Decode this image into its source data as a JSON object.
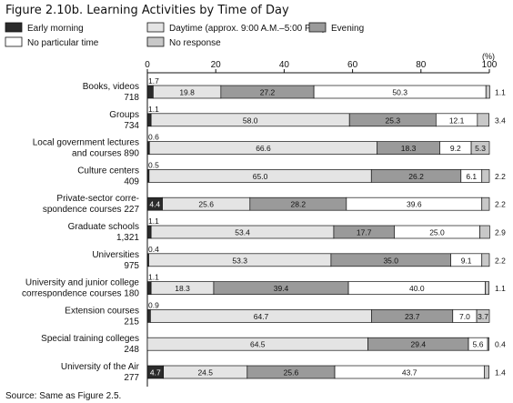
{
  "chart_data": {
    "type": "bar",
    "stacked": true,
    "orientation": "horizontal",
    "title": "Figure 2.10b. Learning Activities by Time of Day",
    "unit_label": "(%)",
    "xlim": [
      0,
      100
    ],
    "xticks": [
      0,
      20,
      40,
      60,
      80,
      100
    ],
    "grid": false,
    "legend_position": "top",
    "source": "Source: Same as Figure 2.5.",
    "series": [
      {
        "name": "Early morning",
        "color": "#2b2b2b"
      },
      {
        "name": "Daytime (approx. 9:00 A.M.–5:00 P.M.)",
        "color": "#e4e4e4"
      },
      {
        "name": "Evening",
        "color": "#9a9a9a"
      },
      {
        "name": "No particular time",
        "color": "#ffffff"
      },
      {
        "name": "No response",
        "color": "#c8c8c8"
      }
    ],
    "categories": [
      {
        "label": [
          "Books, videos",
          "718"
        ],
        "values": [
          1.7,
          19.8,
          27.2,
          50.3,
          1.1
        ],
        "labels": [
          "1.7",
          "19.8",
          "27.2",
          "50.3",
          "1.1"
        ],
        "placement": [
          "above",
          "in",
          "in",
          "in",
          "right"
        ]
      },
      {
        "label": [
          "Groups",
          "734"
        ],
        "values": [
          1.1,
          58.0,
          25.3,
          12.1,
          3.4
        ],
        "labels": [
          "1.1",
          "58.0",
          "25.3",
          "12.1",
          "3.4"
        ],
        "placement": [
          "above",
          "in",
          "in",
          "in",
          "right"
        ]
      },
      {
        "label": [
          "Local government lectures",
          "and courses  890"
        ],
        "values": [
          0.6,
          66.6,
          18.3,
          9.2,
          5.3
        ],
        "labels": [
          "0.6",
          "66.6",
          "18.3",
          "9.2",
          "5.3"
        ],
        "placement": [
          "above",
          "in",
          "in",
          "in",
          "in"
        ]
      },
      {
        "label": [
          "Culture centers",
          "409"
        ],
        "values": [
          0.5,
          65.0,
          26.2,
          6.1,
          2.2
        ],
        "labels": [
          "0.5",
          "65.0",
          "26.2",
          "6.1",
          "2.2"
        ],
        "placement": [
          "above",
          "in",
          "in",
          "in",
          "right"
        ]
      },
      {
        "label": [
          "Private-sector corre-",
          "spondence courses  227"
        ],
        "values": [
          4.4,
          25.6,
          28.2,
          39.6,
          2.2
        ],
        "labels": [
          "4.4",
          "25.6",
          "28.2",
          "39.6",
          "2.2"
        ],
        "placement": [
          "in",
          "in",
          "in",
          "in",
          "right"
        ]
      },
      {
        "label": [
          "Graduate schools",
          "1,321"
        ],
        "values": [
          1.1,
          53.4,
          17.7,
          25.0,
          2.9
        ],
        "labels": [
          "1.1",
          "53.4",
          "17.7",
          "25.0",
          "2.9"
        ],
        "placement": [
          "above",
          "in",
          "in",
          "in",
          "right"
        ]
      },
      {
        "label": [
          "Universities",
          "975"
        ],
        "values": [
          0.4,
          53.3,
          35.0,
          9.1,
          2.2
        ],
        "labels": [
          "0.4",
          "53.3",
          "35.0",
          "9.1",
          "2.2"
        ],
        "placement": [
          "above",
          "in",
          "in",
          "in",
          "right"
        ]
      },
      {
        "label": [
          "University and junior college",
          "correspondence courses  180"
        ],
        "values": [
          1.1,
          18.3,
          39.4,
          40.0,
          1.1
        ],
        "labels": [
          "1.1",
          "18.3",
          "39.4",
          "40.0",
          "1.1"
        ],
        "placement": [
          "above",
          "in",
          "in",
          "in",
          "right"
        ]
      },
      {
        "label": [
          "Extension courses",
          "215"
        ],
        "values": [
          0.9,
          64.7,
          23.7,
          7.0,
          3.7
        ],
        "labels": [
          "0.9",
          "64.7",
          "23.7",
          "7.0",
          "3.7"
        ],
        "placement": [
          "above",
          "in",
          "in",
          "in",
          "in"
        ]
      },
      {
        "label": [
          "Special training colleges",
          "248"
        ],
        "values": [
          0.0,
          64.5,
          29.4,
          5.6,
          0.4
        ],
        "labels": [
          "",
          "64.5",
          "29.4",
          "5.6",
          "0.4"
        ],
        "placement": [
          "none",
          "in",
          "in",
          "in",
          "right"
        ]
      },
      {
        "label": [
          "University of the Air",
          "277"
        ],
        "values": [
          4.7,
          24.5,
          25.6,
          43.7,
          1.4
        ],
        "labels": [
          "4.7",
          "24.5",
          "25.6",
          "43.7",
          "1.4"
        ],
        "placement": [
          "in",
          "in",
          "in",
          "in",
          "right"
        ]
      }
    ]
  }
}
